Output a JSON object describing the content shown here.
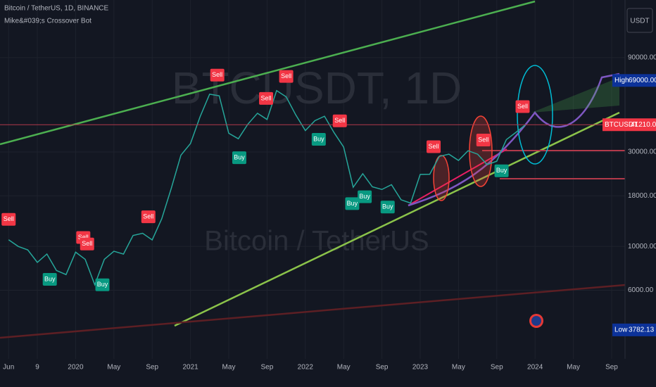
{
  "header": {
    "symbol": "Bitcoin / TetherUS, 1D, BINANCE",
    "indicator": "Mike&#039;s Crossover Bot",
    "currency_button": "USDT"
  },
  "watermark": {
    "ticker": "BTCUSDT, 1D",
    "name": "Bitcoin / TetherUS"
  },
  "chart_data": {
    "type": "line",
    "log_scale": true,
    "grid": true,
    "series": [
      {
        "name": "BTCUSDT",
        "color": "#26a69a",
        "x": [
          0,
          1,
          2,
          3,
          4,
          5,
          6,
          7,
          8,
          9,
          10,
          11,
          12,
          13,
          14,
          15,
          16,
          17,
          18,
          19,
          20,
          21,
          22,
          23,
          24,
          25,
          26,
          27,
          28,
          29,
          30,
          31,
          32,
          33,
          34,
          35,
          36,
          37,
          38,
          39,
          40,
          41,
          42,
          43,
          44,
          45,
          46,
          47,
          48,
          49,
          50,
          51,
          52,
          53,
          54
        ],
        "values": [
          10800,
          10000,
          9600,
          8300,
          9150,
          7550,
          7200,
          9350,
          8600,
          6400,
          8600,
          9450,
          9140,
          11350,
          11650,
          10780,
          13800,
          19700,
          28900,
          33100,
          45200,
          58800,
          57700,
          37300,
          35000,
          41500,
          47100,
          43800,
          61300,
          57000,
          46200,
          38500,
          43200,
          45500,
          37600,
          31800,
          19900,
          23300,
          20000,
          19400,
          20500,
          17200,
          16550,
          23100,
          23150,
          28500,
          29250,
          27200,
          30450,
          29250,
          25900,
          26950,
          34650,
          37700,
          41210
        ]
      }
    ],
    "last_price": {
      "name": "BTCUSDT",
      "value": 41210,
      "value_label": "41210.00"
    },
    "markers": [
      {
        "name": "High",
        "value": 69000,
        "value_label": "69000.00"
      },
      {
        "name": "Low",
        "value": 3782.13,
        "value_label": "3782.13"
      }
    ],
    "signals": [
      {
        "label": "Sell",
        "x": 0
      },
      {
        "label": "Buy",
        "x": 4.3
      },
      {
        "label": "Sell",
        "x": 7.8
      },
      {
        "label": "Sell",
        "x": 8.2
      },
      {
        "label": "Buy",
        "x": 9.8
      },
      {
        "label": "Sell",
        "x": 14.6
      },
      {
        "label": "Sell",
        "x": 21.8
      },
      {
        "label": "Buy",
        "x": 24.1
      },
      {
        "label": "Sell",
        "x": 26.9
      },
      {
        "label": "Sell",
        "x": 29
      },
      {
        "label": "Buy",
        "x": 32.4
      },
      {
        "label": "Sell",
        "x": 34.6
      },
      {
        "label": "Buy",
        "x": 35.9
      },
      {
        "label": "Buy",
        "x": 37.2
      },
      {
        "label": "Buy",
        "x": 39.6
      },
      {
        "label": "Sell",
        "x": 44.4
      },
      {
        "label": "Sell",
        "x": 49.6
      },
      {
        "label": "Buy",
        "x": 51.5
      },
      {
        "label": "Sell",
        "x": 53.7
      }
    ],
    "xlim": [
      -0.9,
      64.4
    ],
    "xticks": [
      {
        "value": 0,
        "label": "Jun"
      },
      {
        "value": 3,
        "label": "9"
      },
      {
        "value": 7,
        "label": "2020"
      },
      {
        "value": 11,
        "label": "May"
      },
      {
        "value": 15,
        "label": "Sep"
      },
      {
        "value": 19,
        "label": "2021"
      },
      {
        "value": 23,
        "label": "May"
      },
      {
        "value": 27,
        "label": "Sep"
      },
      {
        "value": 31,
        "label": "2022"
      },
      {
        "value": 35,
        "label": "May"
      },
      {
        "value": 39,
        "label": "Sep"
      },
      {
        "value": 43,
        "label": "2023"
      },
      {
        "value": 47,
        "label": "May"
      },
      {
        "value": 51,
        "label": "Sep"
      },
      {
        "value": 55,
        "label": "2024"
      },
      {
        "value": 59,
        "label": "May"
      },
      {
        "value": 63,
        "label": "Sep"
      }
    ],
    "ylim": [
      2700,
      176000
    ],
    "yticks": [
      {
        "value": 90000,
        "label": "90000.00"
      },
      {
        "value": 30000,
        "label": "30000.00"
      },
      {
        "value": 18000,
        "label": "18000.00"
      },
      {
        "value": 10000,
        "label": "10000.00"
      },
      {
        "value": 6000,
        "label": "6000.00"
      }
    ]
  }
}
